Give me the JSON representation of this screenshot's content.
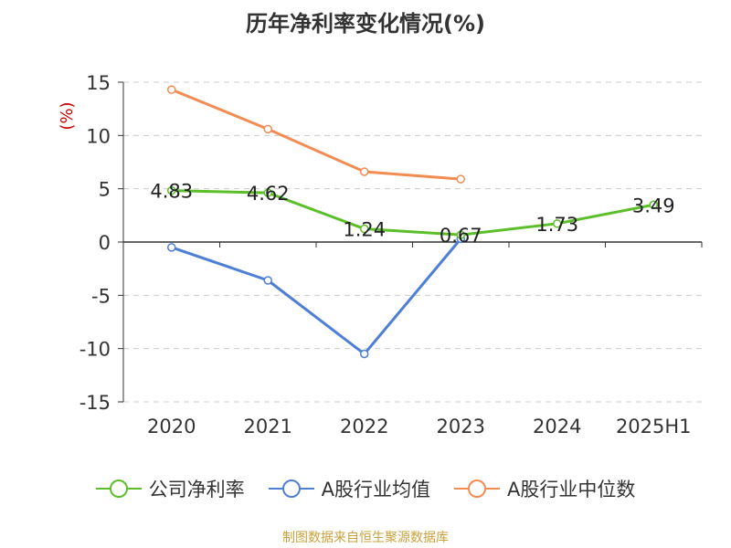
{
  "title": "历年净利率变化情况(%)",
  "source": "制图数据来自恒生聚源数据库",
  "colors": {
    "company": "#5cbf2a",
    "industry_avg": "#4e7fd6",
    "industry_median": "#f28c52",
    "grid": "#cccccc",
    "axis": "#333333",
    "ylabel": "#cc0000",
    "text": "#333333"
  },
  "chart_data": {
    "type": "line",
    "title": "历年净利率变化情况(%)",
    "ylabel": "(%)",
    "xlabel": "",
    "ylim": [
      -15,
      15
    ],
    "yticks": [
      15,
      10,
      5,
      0,
      -5,
      -10,
      -15
    ],
    "categories": [
      "2020",
      "2021",
      "2022",
      "2023",
      "2024",
      "2025H1"
    ],
    "grid": true,
    "legend_position": "bottom",
    "series": [
      {
        "name": "公司净利率",
        "key": "company",
        "values": [
          4.83,
          4.62,
          1.24,
          0.67,
          1.73,
          3.49
        ],
        "labels": [
          "4.83",
          "4.62",
          "1.24",
          "0.67",
          "1.73",
          "3.49"
        ]
      },
      {
        "name": "A股行业均值",
        "key": "industry_avg",
        "values": [
          -0.5,
          -3.6,
          -10.5,
          0.3,
          null,
          null
        ]
      },
      {
        "name": "A股行业中位数",
        "key": "industry_median",
        "values": [
          14.3,
          10.6,
          6.6,
          5.9,
          null,
          null
        ]
      }
    ]
  }
}
